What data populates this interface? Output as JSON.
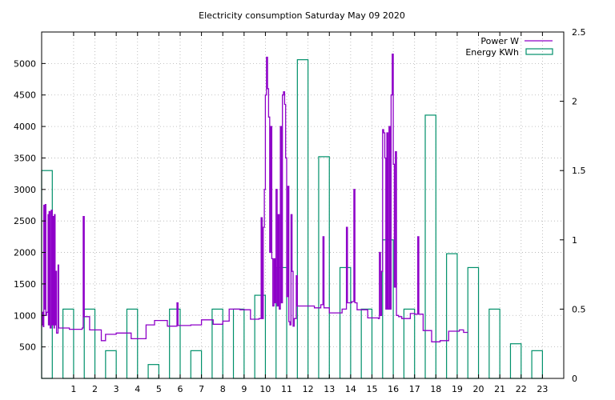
{
  "chart_data": {
    "type": "line",
    "title": "Electricity consumption Saturday May 09 2020",
    "xlim": [
      -0.5,
      24
    ],
    "x_ticks": [
      1,
      2,
      3,
      4,
      5,
      6,
      7,
      8,
      9,
      10,
      11,
      12,
      13,
      14,
      15,
      16,
      17,
      18,
      19,
      20,
      21,
      22,
      23
    ],
    "y_left": {
      "lim": [
        0,
        5500
      ],
      "ticks": [
        500,
        1000,
        1500,
        2000,
        2500,
        3000,
        3500,
        4000,
        4500,
        5000
      ]
    },
    "y_right": {
      "lim": [
        0,
        2.5
      ],
      "ticks": [
        0,
        0.5,
        1,
        1.5,
        2,
        2.5
      ]
    },
    "grid": true,
    "legend_position": "top-right",
    "colors": {
      "power": "#8e00c8",
      "energy": "#00906a",
      "grid": "#b0b0b0"
    },
    "series": [
      {
        "name": "Energy KWh",
        "type": "bar",
        "axis": "right",
        "categories": [
          0,
          1,
          2,
          3,
          4,
          5,
          6,
          7,
          8,
          9,
          10,
          11,
          12,
          13,
          14,
          15,
          16,
          17,
          18,
          19,
          20,
          21,
          22,
          23
        ],
        "values": [
          1.5,
          0.5,
          0.5,
          0.2,
          0.5,
          0.1,
          0.5,
          0.2,
          0.5,
          0.5,
          0.6,
          0.8,
          2.3,
          1.6,
          0.8,
          0.5,
          1.0,
          0.5,
          1.9,
          0.9,
          0.8,
          0.5,
          0.25,
          0.2
        ]
      },
      {
        "name": "Power W",
        "type": "line",
        "axis": "left",
        "points": [
          [
            -0.5,
            850
          ],
          [
            -0.45,
            1050
          ],
          [
            -0.42,
            820
          ],
          [
            -0.4,
            2750
          ],
          [
            -0.35,
            1100
          ],
          [
            -0.33,
            2760
          ],
          [
            -0.3,
            1000
          ],
          [
            -0.27,
            1050
          ],
          [
            -0.2,
            2600
          ],
          [
            -0.18,
            850
          ],
          [
            -0.15,
            2650
          ],
          [
            -0.1,
            800
          ],
          [
            -0.05,
            2670
          ],
          [
            0.0,
            850
          ],
          [
            0.05,
            2570
          ],
          [
            0.08,
            800
          ],
          [
            0.1,
            2600
          ],
          [
            0.13,
            850
          ],
          [
            0.17,
            1700
          ],
          [
            0.2,
            720
          ],
          [
            0.27,
            1800
          ],
          [
            0.3,
            800
          ],
          [
            0.5,
            800
          ],
          [
            0.8,
            780
          ],
          [
            1.2,
            780
          ],
          [
            1.4,
            800
          ],
          [
            1.45,
            2570
          ],
          [
            1.5,
            980
          ],
          [
            1.75,
            770
          ],
          [
            2.2,
            770
          ],
          [
            2.3,
            600
          ],
          [
            2.5,
            700
          ],
          [
            3.0,
            720
          ],
          [
            3.7,
            630
          ],
          [
            4.4,
            850
          ],
          [
            4.8,
            920
          ],
          [
            5.4,
            830
          ],
          [
            5.85,
            1200
          ],
          [
            5.9,
            840
          ],
          [
            6.5,
            850
          ],
          [
            7.0,
            930
          ],
          [
            7.55,
            860
          ],
          [
            8.0,
            910
          ],
          [
            8.3,
            1100
          ],
          [
            8.8,
            1090
          ],
          [
            9.3,
            940
          ],
          [
            9.7,
            950
          ],
          [
            9.8,
            2550
          ],
          [
            9.85,
            950
          ],
          [
            9.9,
            2400
          ],
          [
            9.95,
            3000
          ],
          [
            10.0,
            4500
          ],
          [
            10.05,
            5100
          ],
          [
            10.1,
            4600
          ],
          [
            10.15,
            4150
          ],
          [
            10.2,
            2000
          ],
          [
            10.25,
            4000
          ],
          [
            10.3,
            1900
          ],
          [
            10.35,
            1150
          ],
          [
            10.4,
            1900
          ],
          [
            10.45,
            1200
          ],
          [
            10.5,
            3000
          ],
          [
            10.55,
            1150
          ],
          [
            10.6,
            2600
          ],
          [
            10.65,
            1100
          ],
          [
            10.7,
            4000
          ],
          [
            10.75,
            1200
          ],
          [
            10.8,
            4500
          ],
          [
            10.85,
            4550
          ],
          [
            10.9,
            4350
          ],
          [
            10.95,
            3500
          ],
          [
            11.0,
            1300
          ],
          [
            11.05,
            3050
          ],
          [
            11.1,
            900
          ],
          [
            11.15,
            850
          ],
          [
            11.2,
            2600
          ],
          [
            11.25,
            1700
          ],
          [
            11.3,
            830
          ],
          [
            11.35,
            950
          ],
          [
            11.45,
            1630
          ],
          [
            11.5,
            1150
          ],
          [
            11.6,
            1150
          ],
          [
            12.3,
            1120
          ],
          [
            12.6,
            1170
          ],
          [
            12.7,
            2250
          ],
          [
            12.75,
            1120
          ],
          [
            13.0,
            1040
          ],
          [
            13.6,
            1100
          ],
          [
            13.8,
            2400
          ],
          [
            13.85,
            1200
          ],
          [
            14.05,
            1220
          ],
          [
            14.15,
            3000
          ],
          [
            14.2,
            1200
          ],
          [
            14.3,
            1090
          ],
          [
            14.8,
            960
          ],
          [
            15.3,
            950
          ],
          [
            15.35,
            2000
          ],
          [
            15.4,
            1000
          ],
          [
            15.45,
            1700
          ],
          [
            15.5,
            3950
          ],
          [
            15.55,
            3900
          ],
          [
            15.6,
            3500
          ],
          [
            15.65,
            1100
          ],
          [
            15.7,
            3900
          ],
          [
            15.75,
            1100
          ],
          [
            15.8,
            4000
          ],
          [
            15.85,
            1100
          ],
          [
            15.9,
            4500
          ],
          [
            15.95,
            5150
          ],
          [
            16.0,
            3400
          ],
          [
            16.05,
            1450
          ],
          [
            16.1,
            3600
          ],
          [
            16.15,
            1000
          ],
          [
            16.25,
            980
          ],
          [
            16.4,
            950
          ],
          [
            16.8,
            1030
          ],
          [
            17.0,
            1020
          ],
          [
            17.15,
            2250
          ],
          [
            17.2,
            1020
          ],
          [
            17.4,
            760
          ],
          [
            17.8,
            580
          ],
          [
            18.2,
            600
          ],
          [
            18.6,
            750
          ],
          [
            19.1,
            770
          ],
          [
            19.3,
            730
          ],
          [
            19.5,
            730
          ]
        ]
      }
    ]
  }
}
